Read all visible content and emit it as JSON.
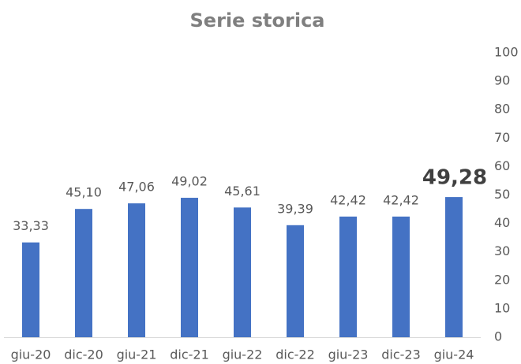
{
  "chart_data": {
    "type": "bar",
    "title": "Serie storica",
    "categories": [
      "giu-20",
      "dic-20",
      "giu-21",
      "dic-21",
      "giu-22",
      "dic-22",
      "giu-23",
      "dic-23",
      "giu-24"
    ],
    "values": [
      33.33,
      45.1,
      47.06,
      49.02,
      45.61,
      39.39,
      42.42,
      42.42,
      49.28
    ],
    "value_labels": [
      "33,33",
      "45,10",
      "47,06",
      "49,02",
      "45,61",
      "39,39",
      "42,42",
      "42,42",
      "49,28"
    ],
    "color": "#4472c4",
    "ylim": [
      0,
      100
    ],
    "yticks": [
      0,
      10,
      20,
      30,
      40,
      50,
      60,
      70,
      80,
      90,
      100
    ],
    "grid": false
  }
}
